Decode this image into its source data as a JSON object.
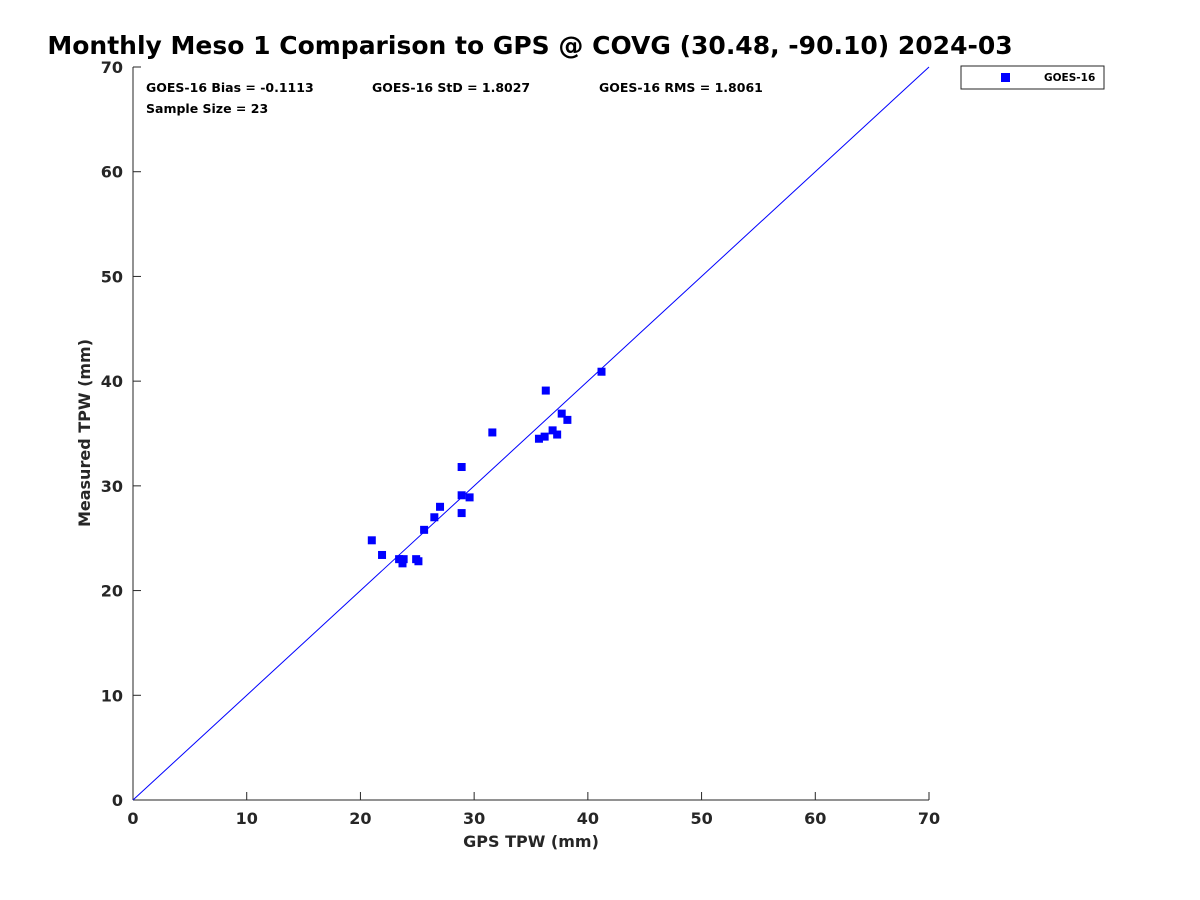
{
  "chart_data": {
    "type": "scatter",
    "title": "Monthly Meso 1 Comparison to GPS @ COVG (30.48, -90.10) 2024-03",
    "xlabel": "GPS TPW (mm)",
    "ylabel": "Measured TPW (mm)",
    "xlim": [
      0,
      70
    ],
    "ylim": [
      0,
      70
    ],
    "xticks": [
      0,
      10,
      20,
      30,
      40,
      50,
      60,
      70
    ],
    "yticks": [
      0,
      10,
      20,
      30,
      40,
      50,
      60,
      70
    ],
    "grid": false,
    "legend_position": "outside-top-right",
    "stats": {
      "bias": "GOES-16 Bias = -0.1113",
      "std": "GOES-16 StD = 1.8027",
      "rms": "GOES-16 RMS = 1.8061",
      "sample_size": "Sample Size = 23"
    },
    "reference_line": {
      "color": "#0000ff",
      "from": [
        0,
        0
      ],
      "to": [
        70,
        70
      ]
    },
    "series": [
      {
        "name": "GOES-16",
        "color": "#0000ff",
        "marker": "square",
        "points": [
          [
            21.0,
            24.8
          ],
          [
            21.9,
            23.4
          ],
          [
            23.4,
            23.0
          ],
          [
            23.7,
            22.6
          ],
          [
            23.8,
            23.0
          ],
          [
            24.9,
            23.0
          ],
          [
            25.1,
            22.8
          ],
          [
            25.6,
            25.8
          ],
          [
            26.5,
            27.0
          ],
          [
            27.0,
            28.0
          ],
          [
            28.9,
            31.8
          ],
          [
            28.9,
            29.1
          ],
          [
            28.9,
            27.4
          ],
          [
            29.6,
            28.9
          ],
          [
            31.6,
            35.1
          ],
          [
            35.7,
            34.5
          ],
          [
            36.2,
            34.7
          ],
          [
            36.3,
            39.1
          ],
          [
            36.9,
            35.3
          ],
          [
            37.3,
            34.9
          ],
          [
            37.7,
            36.9
          ],
          [
            38.2,
            36.3
          ],
          [
            41.2,
            40.9
          ]
        ]
      }
    ]
  }
}
